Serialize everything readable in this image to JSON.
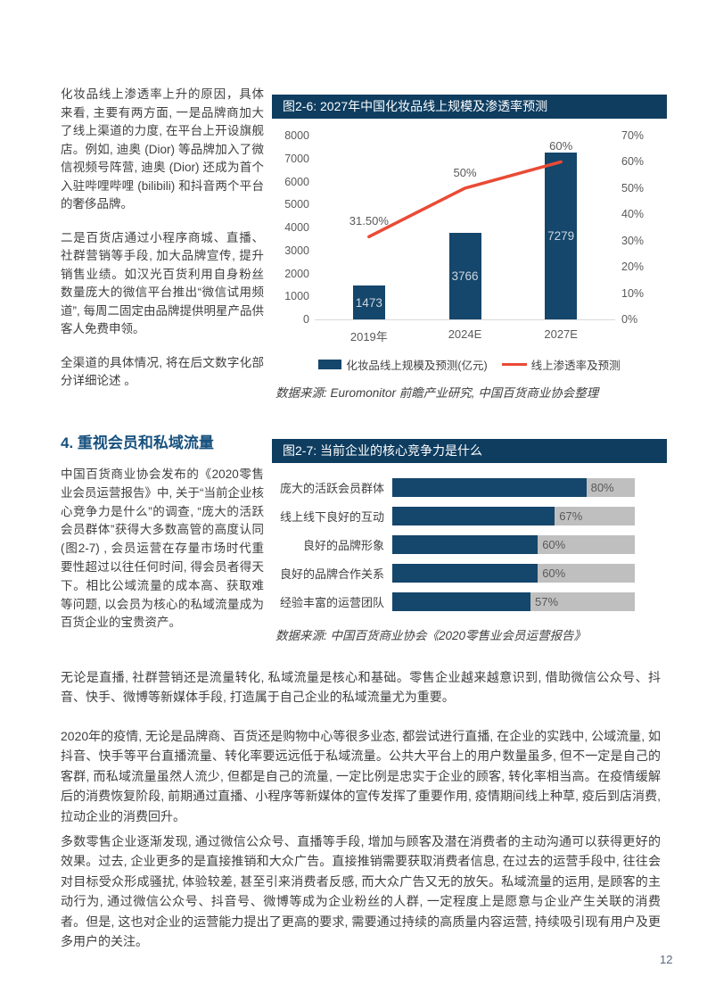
{
  "page": {
    "number": "12"
  },
  "left_column": {
    "para1": "化妆品线上渗透率上升的原因，具体来看, 主要有两方面, 一是品牌商加大了线上渠道的力度, 在平台上开设旗舰店。例如, 迪奥 (Dior) 等品牌加入了微信视频号阵营, 迪奥 (Dior) 还成为首个入驻哔哩哔哩 (bilibili) 和抖音两个平台的奢侈品牌。",
    "para2": "二是百货店通过小程序商城、直播、社群营销等手段, 加大品牌宣传, 提升销售业绩。如汉光百货利用自身粉丝数量庞大的微信平台推出“微信试用频道”, 每周二固定由品牌提供明星产品供客人免费申领。",
    "para3": "全渠道的具体情况, 将在后文数字化部分详细论述 。",
    "section_heading": "4. 重视会员和私域流量",
    "para4": "中国百货商业协会发布的《2020零售业会员运营报告》中, 关于“当前企业核心竞争力是什么”的调查, “庞大的活跃会员群体”获得大多数高管的高度认同 (图2-7) , 会员运营在存量市场时代重要性超过以往任何时间, 得会员者得天下。相比公域流量的成本高、获取难等问题, 以会员为核心的私域流量成为百货企业的宝贵资产。"
  },
  "figure26": {
    "source": "数据来源: Euromonitor 前瞻产业研究, 中国百货商业协会整理"
  },
  "figure27": {
    "source": "数据来源: 中国百货商业协会《2020零售业会员运营报告》"
  },
  "chart_data": [
    {
      "id": "fig2-6",
      "type": "bar",
      "title": "图2-6: 2027年中国化妆品线上规模及渗透率预测",
      "categories": [
        "2019年",
        "2024E",
        "2027E"
      ],
      "series": [
        {
          "name": "化妆品线上规模及预测(亿元)",
          "type": "bar",
          "axis": "left",
          "values": [
            1473,
            3766,
            7279
          ],
          "labels": [
            "1473",
            "3766",
            "7279"
          ],
          "color": "#15466B"
        },
        {
          "name": "线上渗透率及预测",
          "type": "line",
          "axis": "right",
          "values": [
            31.5,
            50,
            60
          ],
          "labels": [
            "31.50%",
            "50%",
            "60%"
          ],
          "color": "#EA4A35"
        }
      ],
      "left_axis": {
        "min": 0,
        "max": 8000,
        "step": 1000
      },
      "right_axis": {
        "min": 0,
        "max": 70,
        "step": 10,
        "suffix": "%"
      },
      "legend_position": "bottom",
      "grid": false
    },
    {
      "id": "fig2-7",
      "type": "bar",
      "orientation": "horizontal",
      "title": "图2-7: 当前企业的核心竞争力是什么",
      "categories": [
        "庞大的活跃会员群体",
        "线上线下良好的互动",
        "良好的品牌形象",
        "良好的品牌合作关系",
        "经验丰富的运营团队"
      ],
      "values": [
        80,
        67,
        60,
        60,
        57
      ],
      "value_labels": [
        "80%",
        "67%",
        "60%",
        "60%",
        "57%"
      ],
      "xlim": [
        0,
        100
      ],
      "bar_color": "#15466B",
      "track_color": "#BFBFBF"
    }
  ],
  "body": {
    "para1": "无论是直播, 社群营销还是流量转化, 私域流量是核心和基础。零售企业越来越意识到, 借助微信公众号、抖音、快手、微博等新媒体手段, 打造属于自己企业的私域流量尤为重要。",
    "para2": "2020年的疫情, 无论是品牌商、百货还是购物中心等很多业态, 都尝试进行直播, 在企业的实践中, 公域流量, 如抖音、快手等平台直播流量、转化率要远远低于私域流量。公共大平台上的用户数量虽多, 但不一定是自己的客群, 而私域流量虽然人流少, 但都是自己的流量, 一定比例是忠实于企业的顾客, 转化率相当高。在疫情缓解后的消费恢复阶段, 前期通过直播、小程序等新媒体的宣传发挥了重要作用, 疫情期间线上种草, 疫后到店消费, 拉动企业的消费回升。",
    "para3": "多数零售企业逐渐发现, 通过微信公众号、直播等手段, 增加与顾客及潜在消费者的主动沟通可以获得更好的效果。过去, 企业更多的是直接推销和大众广告。直接推销需要获取消费者信息, 在过去的运营手段中, 往往会对目标受众形成骚扰, 体验较差, 甚至引来消费者反感, 而大众广告又无的放矢。私域流量的运用, 是顾客的主动行为, 通过微信公众号、抖音号、微博等成为企业粉丝的人群, 一定程度上是愿意与企业产生关联的消费者。但是, 这也对企业的运营能力提出了更高的要求, 需要通过持续的高质量内容运营, 持续吸引现有用户及更多用户的关注。"
  }
}
